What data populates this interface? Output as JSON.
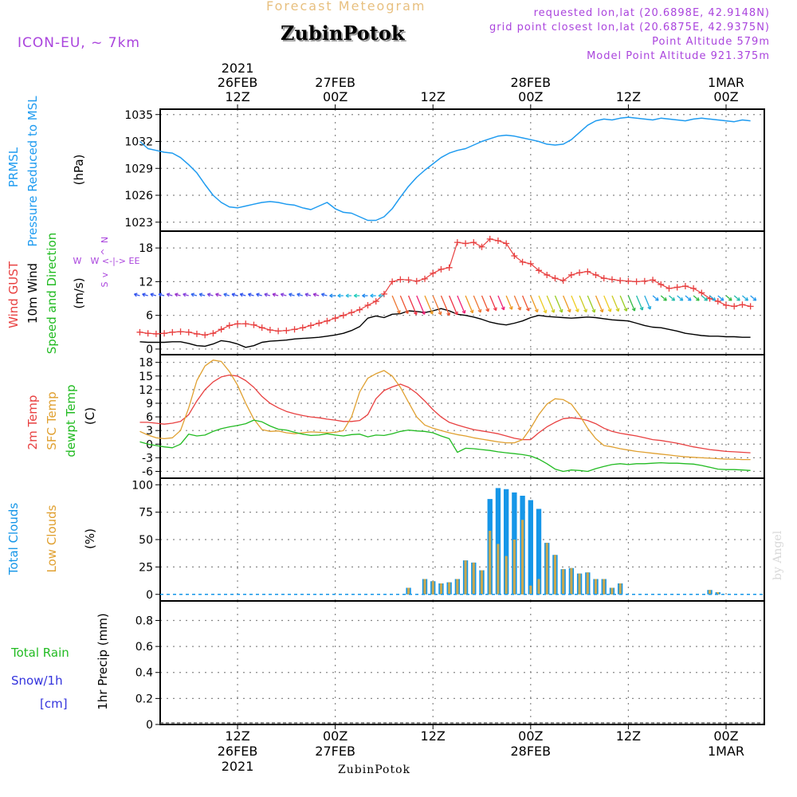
{
  "header": {
    "subtitle": "Forecast Meteogram",
    "title": "ZubinPotok",
    "model": "ICON-EU, ~ 7km",
    "requested": "requested lon,lat (20.6898E, 42.9148N)",
    "closest": "grid point closest lon,lat (20.6875E, 42.9375N)",
    "point_alt": "Point Altitude 579m",
    "model_alt": "Model Point Altitude 921.375m",
    "year": "2021",
    "footer_place": "ZubinPotok",
    "watermark": "by Angel"
  },
  "colors": {
    "pressure": "#1e9bf0",
    "gust": "#e84040",
    "wind": "#000000",
    "dir": "#22bb22",
    "t2m": "#e84040",
    "sfc": "#e0a030",
    "dew": "#22bb22",
    "total_clouds": "#1596e8",
    "low_clouds": "#c8a850",
    "rain": "#22bb22",
    "snow": "#3333dd",
    "compass": "#aa44dd",
    "subtitle": "#e8c080",
    "header_info": "#aa44dd"
  },
  "time_axis": {
    "labels": [
      {
        "t": 12,
        "top": "12Z",
        "mid": "26FEB",
        "year": "2021"
      },
      {
        "t": 24,
        "top": "00Z",
        "mid": "27FEB"
      },
      {
        "t": 36,
        "top": "12Z",
        "mid": ""
      },
      {
        "t": 48,
        "top": "00Z",
        "mid": "28FEB"
      },
      {
        "t": 60,
        "top": "12Z",
        "mid": ""
      },
      {
        "t": 72,
        "top": "00Z",
        "mid": "1MAR"
      }
    ]
  },
  "panels": {
    "pressure": {
      "labels": [
        "PRMSL",
        "Pressure Reduced to MSL"
      ],
      "unit": "(hPa)"
    },
    "wind": {
      "labels": [
        "Wind GUST",
        "10m Wind",
        "Speed and Direction"
      ],
      "unit": "(m/s)",
      "compass": {
        "n": "N",
        "s": "S",
        "e": "E",
        "w": "W",
        "row": "W <-|-> E",
        "up": "^",
        "down": "v"
      }
    },
    "temp": {
      "labels": [
        "2m Temp",
        "SFC Temp",
        "dewpt Temp"
      ],
      "unit": "(C)"
    },
    "clouds": {
      "labels": [
        "Total Clouds",
        "Low Clouds"
      ],
      "unit": "(%)"
    },
    "precip": {
      "labels": [
        "Total  Rain",
        "Snow/1h",
        "[cm]"
      ],
      "unit": "1hr Precip (mm)"
    }
  },
  "chart_data": [
    {
      "type": "line",
      "title": "PRMSL Pressure Reduced to MSL",
      "ylabel": "hPa",
      "ylim": [
        1022,
        1035.6
      ],
      "yticks": [
        1023,
        1026,
        1029,
        1032,
        1035
      ],
      "x": [
        0,
        1,
        2,
        3,
        4,
        5,
        6,
        7,
        8,
        9,
        10,
        11,
        12,
        13,
        14,
        15,
        16,
        17,
        18,
        19,
        20,
        21,
        22,
        23,
        24,
        25,
        26,
        27,
        28,
        29,
        30,
        31,
        32,
        33,
        34,
        35,
        36,
        37,
        38,
        39,
        40,
        41,
        42,
        43,
        44,
        45,
        46,
        47,
        48,
        49,
        50,
        51,
        52,
        53,
        54,
        55,
        56,
        57,
        58,
        59,
        60,
        61,
        62,
        63,
        64,
        65,
        66,
        67,
        68,
        69,
        70,
        71,
        72,
        73,
        74,
        75
      ],
      "series": [
        {
          "name": "PRMSL",
          "values": [
            1032,
            1031.2,
            1031,
            1030.8,
            1030.7,
            1030.2,
            1029.4,
            1028.5,
            1027.2,
            1026,
            1025.2,
            1024.7,
            1024.6,
            1024.8,
            1025,
            1025.2,
            1025.3,
            1025.2,
            1025,
            1024.9,
            1024.6,
            1024.4,
            1024.8,
            1025.2,
            1024.5,
            1024.1,
            1024,
            1023.6,
            1023.2,
            1023.2,
            1023.6,
            1024.5,
            1025.8,
            1027,
            1028,
            1028.8,
            1029.5,
            1030.2,
            1030.7,
            1031,
            1031.2,
            1031.6,
            1032,
            1032.3,
            1032.6,
            1032.7,
            1032.6,
            1032.4,
            1032.2,
            1032,
            1031.7,
            1031.6,
            1031.7,
            1032.2,
            1033,
            1033.8,
            1034.3,
            1034.5,
            1034.4,
            1034.6,
            1034.7,
            1034.6,
            1034.5,
            1034.4,
            1034.6,
            1034.5,
            1034.4,
            1034.3,
            1034.5,
            1034.6,
            1034.5,
            1034.4,
            1034.3,
            1034.2,
            1034.4,
            1034.3
          ]
        }
      ]
    },
    {
      "type": "line",
      "title": "Wind GUST / 10m Wind Speed and Direction",
      "ylabel": "m/s",
      "ylim": [
        -1,
        21
      ],
      "yticks": [
        0,
        6,
        12,
        18
      ],
      "x": [
        0,
        1,
        2,
        3,
        4,
        5,
        6,
        7,
        8,
        9,
        10,
        11,
        12,
        13,
        14,
        15,
        16,
        17,
        18,
        19,
        20,
        21,
        22,
        23,
        24,
        25,
        26,
        27,
        28,
        29,
        30,
        31,
        32,
        33,
        34,
        35,
        36,
        37,
        38,
        39,
        40,
        41,
        42,
        43,
        44,
        45,
        46,
        47,
        48,
        49,
        50,
        51,
        52,
        53,
        54,
        55,
        56,
        57,
        58,
        59,
        60,
        61,
        62,
        63,
        64,
        65,
        66,
        67,
        68,
        69,
        70,
        71,
        72,
        73,
        74,
        75
      ],
      "series": [
        {
          "name": "Wind GUST",
          "values": [
            3,
            2.8,
            2.7,
            2.8,
            3,
            3.1,
            3,
            2.7,
            2.5,
            2.8,
            3.5,
            4.2,
            4.5,
            4.5,
            4.3,
            3.8,
            3.4,
            3.2,
            3.3,
            3.5,
            3.8,
            4.2,
            4.6,
            5,
            5.5,
            6,
            6.5,
            7,
            7.8,
            8.5,
            9.8,
            12,
            12.4,
            12.3,
            12.1,
            12.5,
            13.5,
            14.2,
            14.5,
            19,
            18.8,
            19,
            18.2,
            19.6,
            19.3,
            18.8,
            16.6,
            15.5,
            15.2,
            14,
            13.2,
            12.6,
            12.2,
            13.2,
            13.6,
            13.8,
            13.2,
            12.6,
            12.4,
            12.2,
            12.1,
            12,
            12.1,
            12.3,
            11.5,
            10.8,
            11,
            11.2,
            10.8,
            10,
            9,
            8.5,
            7.8,
            7.6,
            7.9,
            7.6
          ]
        },
        {
          "name": "10m Wind",
          "values": [
            1.3,
            1.2,
            1.2,
            1.2,
            1.3,
            1.3,
            1,
            0.6,
            0.5,
            0.9,
            1.5,
            1.3,
            0.9,
            0.3,
            0.6,
            1.2,
            1.4,
            1.5,
            1.6,
            1.8,
            1.9,
            2,
            2.1,
            2.3,
            2.5,
            2.8,
            3.3,
            4,
            5.5,
            5.9,
            5.6,
            6.2,
            6.3,
            6.8,
            6.7,
            6.5,
            6.8,
            7.2,
            6.8,
            6.2,
            6,
            5.7,
            5.3,
            4.8,
            4.5,
            4.3,
            4.6,
            5,
            5.6,
            6,
            5.8,
            5.7,
            5.6,
            5.5,
            5.6,
            5.7,
            5.6,
            5.4,
            5.2,
            5.1,
            5,
            4.6,
            4.2,
            3.9,
            3.8,
            3.5,
            3.2,
            2.8,
            2.6,
            2.4,
            2.3,
            2.3,
            2.2,
            2.2,
            2.1,
            2.1
          ]
        }
      ],
      "direction_row": {
        "name": "Speed and Direction",
        "y": 9.5
      }
    },
    {
      "type": "line",
      "title": "2m Temp / SFC Temp / dewpt Temp",
      "ylabel": "C",
      "ylim": [
        -7.5,
        19.7
      ],
      "yticks": [
        -6,
        -3,
        0,
        3,
        6,
        9,
        12,
        15,
        18
      ],
      "x": [
        0,
        1,
        2,
        3,
        4,
        5,
        6,
        7,
        8,
        9,
        10,
        11,
        12,
        13,
        14,
        15,
        16,
        17,
        18,
        19,
        20,
        21,
        22,
        23,
        24,
        25,
        26,
        27,
        28,
        29,
        30,
        31,
        32,
        33,
        34,
        35,
        36,
        37,
        38,
        39,
        40,
        41,
        42,
        43,
        44,
        45,
        46,
        47,
        48,
        49,
        50,
        51,
        52,
        53,
        54,
        55,
        56,
        57,
        58,
        59,
        60,
        61,
        62,
        63,
        64,
        65,
        66,
        67,
        68,
        69,
        70,
        71,
        72,
        73,
        74,
        75
      ],
      "series": [
        {
          "name": "2m Temp",
          "values": [
            4.8,
            4.8,
            4.6,
            4.4,
            4.6,
            5,
            6.5,
            9.5,
            12,
            13.7,
            14.8,
            15.2,
            15,
            14,
            12.5,
            10.5,
            9,
            8,
            7.2,
            6.7,
            6.3,
            6,
            5.8,
            5.5,
            5.3,
            5,
            5,
            5.2,
            6.5,
            10,
            11.8,
            12.6,
            13.2,
            12.5,
            11.2,
            9.5,
            7.6,
            6,
            4.8,
            4.2,
            3.7,
            3.2,
            2.9,
            2.6,
            2.3,
            1.8,
            1.3,
            1,
            1,
            2.5,
            3.8,
            4.8,
            5.6,
            5.8,
            5.6,
            5.2,
            4.5,
            3.5,
            2.8,
            2.4,
            2.1,
            1.8,
            1.4,
            1,
            0.8,
            0.5,
            0.2,
            -0.2,
            -0.6,
            -0.9,
            -1.2,
            -1.4,
            -1.6,
            -1.7,
            -1.8,
            -1.9
          ]
        },
        {
          "name": "SFC Temp",
          "values": [
            2.8,
            2,
            1.4,
            1.2,
            1.4,
            3,
            8,
            14,
            17.2,
            18.5,
            18.2,
            16,
            13,
            9,
            5.5,
            3.2,
            2.8,
            2.9,
            2.5,
            2.3,
            2.5,
            2.7,
            2.6,
            2.5,
            2.6,
            3,
            6,
            11.5,
            14.5,
            15.5,
            16.2,
            15,
            12.5,
            9.2,
            6,
            4.2,
            3.5,
            3,
            2.5,
            2.1,
            1.8,
            1.4,
            1.1,
            0.8,
            0.5,
            0.3,
            0.3,
            1,
            3.5,
            6.5,
            8.8,
            10,
            9.8,
            8.8,
            6.4,
            3.5,
            1.2,
            -0.3,
            -0.6,
            -1,
            -1.3,
            -1.6,
            -1.8,
            -2,
            -2.2,
            -2.4,
            -2.6,
            -2.8,
            -2.9,
            -3,
            -3.1,
            -3.2,
            -3.3,
            -3.3,
            -3.4,
            -3.4
          ]
        },
        {
          "name": "dewpt Temp",
          "values": [
            0.5,
            0,
            -0.3,
            -0.6,
            -0.8,
            0,
            2.2,
            1.8,
            2,
            2.8,
            3.4,
            3.8,
            4.1,
            4.5,
            5.3,
            4.9,
            4,
            3.3,
            3.1,
            2.6,
            2.2,
            1.9,
            2,
            2.3,
            2,
            1.8,
            2.1,
            2.2,
            1.6,
            2,
            1.9,
            2.3,
            2.8,
            3.1,
            2.9,
            2.8,
            2.5,
            1.8,
            1.2,
            -1.8,
            -0.9,
            -1,
            -1.2,
            -1.4,
            -1.7,
            -1.9,
            -2.1,
            -2.3,
            -2.6,
            -3.3,
            -4.3,
            -5.5,
            -6,
            -5.7,
            -5.8,
            -6,
            -5.4,
            -4.9,
            -4.5,
            -4.3,
            -4.5,
            -4.3,
            -4.3,
            -4.2,
            -4.1,
            -4.2,
            -4.2,
            -4.3,
            -4.4,
            -4.7,
            -5.1,
            -5.5,
            -5.6,
            -5.6,
            -5.7,
            -5.8
          ]
        }
      ]
    },
    {
      "type": "bar",
      "title": "Total Clouds / Low Clouds",
      "ylabel": "%",
      "ylim": [
        -6,
        106
      ],
      "yticks": [
        0,
        25,
        50,
        75,
        100
      ],
      "x": [
        33,
        35,
        36,
        37,
        38,
        39,
        40,
        41,
        42,
        43,
        44,
        45,
        46,
        47,
        48,
        49,
        50,
        51,
        52,
        53,
        54,
        55,
        56,
        57,
        58,
        59,
        70,
        71
      ],
      "series": [
        {
          "name": "Total Clouds",
          "values": [
            6,
            14,
            12,
            10,
            11,
            14,
            31,
            29,
            22,
            87,
            97,
            96,
            93,
            90,
            86,
            78,
            47,
            36,
            23,
            24,
            19,
            20,
            14,
            14,
            6,
            10,
            4,
            2
          ]
        },
        {
          "name": "Low Clouds",
          "values": [
            6,
            14,
            12,
            10,
            11,
            14,
            31,
            29,
            22,
            58,
            46,
            35,
            50,
            68,
            8,
            14,
            47,
            36,
            23,
            24,
            19,
            20,
            14,
            14,
            6,
            10,
            4,
            2
          ]
        }
      ]
    },
    {
      "type": "bar",
      "title": "1hr Precip",
      "ylabel": "mm",
      "ylim": [
        0,
        0.95
      ],
      "yticks": [
        0,
        0.2,
        0.4,
        0.6,
        0.8
      ],
      "x": [],
      "series": [
        {
          "name": "Total Rain",
          "values": []
        },
        {
          "name": "Snow/1h",
          "values": []
        }
      ]
    }
  ]
}
